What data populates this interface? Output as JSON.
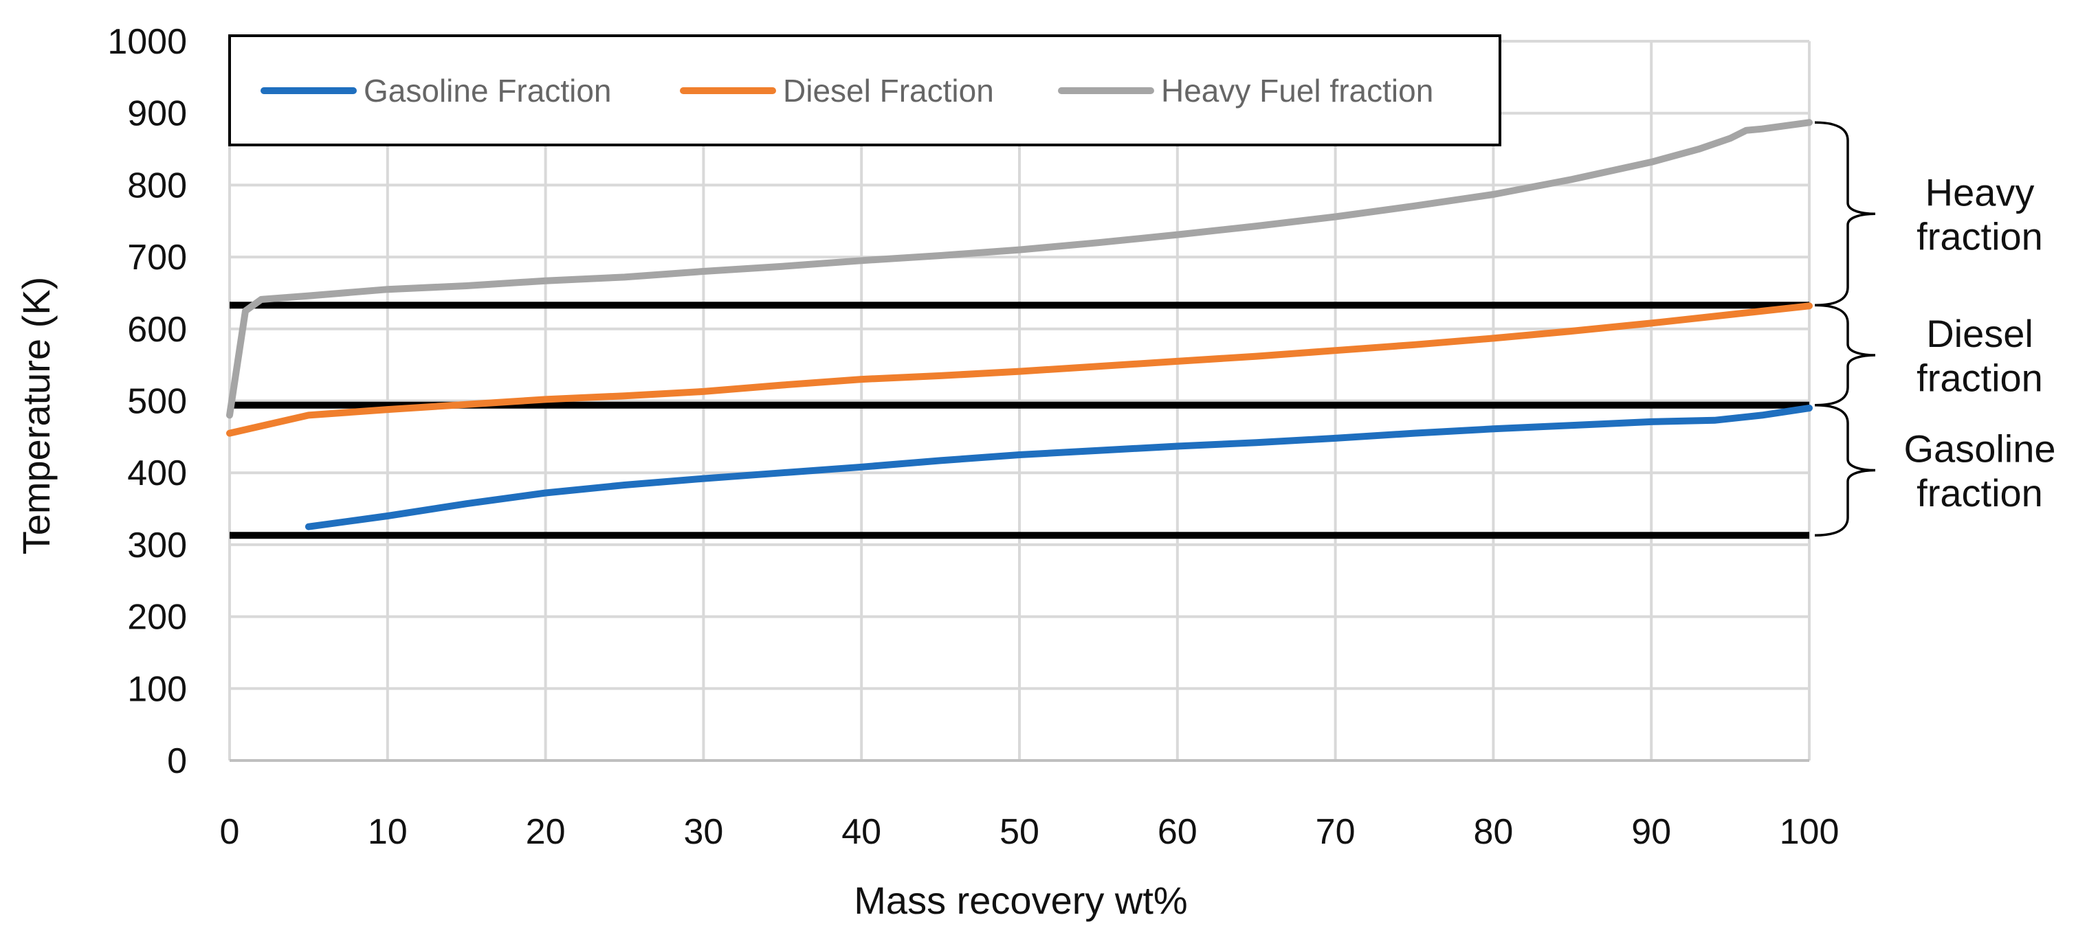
{
  "chart_data": {
    "type": "line",
    "title": "",
    "xlabel": "Mass recovery wt%",
    "ylabel": "Temperature (K)",
    "xlim": [
      0,
      100
    ],
    "ylim": [
      0,
      1000
    ],
    "xticks": [
      0,
      10,
      20,
      30,
      40,
      50,
      60,
      70,
      80,
      90,
      100
    ],
    "yticks": [
      0,
      100,
      200,
      300,
      400,
      500,
      600,
      700,
      800,
      900,
      1000
    ],
    "grid": true,
    "legend_position": "top",
    "series": [
      {
        "name": "Gasoline Fraction",
        "color": "#1f6fbf",
        "x": [
          5,
          10,
          15,
          20,
          25,
          30,
          35,
          40,
          45,
          50,
          55,
          60,
          65,
          70,
          75,
          80,
          85,
          90,
          94,
          97,
          100
        ],
        "y": [
          325,
          340,
          357,
          372,
          383,
          392,
          400,
          408,
          417,
          425,
          431,
          437,
          442,
          448,
          455,
          461,
          466,
          471,
          473,
          480,
          490
        ]
      },
      {
        "name": "Diesel Fraction",
        "color": "#f07f2d",
        "x": [
          0,
          2,
          5,
          10,
          15,
          20,
          25,
          30,
          35,
          40,
          45,
          50,
          55,
          60,
          65,
          70,
          75,
          80,
          85,
          90,
          95,
          100
        ],
        "y": [
          455,
          465,
          480,
          488,
          495,
          502,
          507,
          513,
          522,
          530,
          535,
          541,
          548,
          555,
          562,
          570,
          578,
          587,
          597,
          608,
          620,
          632
        ]
      },
      {
        "name": "Heavy Fuel fraction",
        "color": "#a5a5a5",
        "x": [
          0,
          1,
          2,
          5,
          10,
          15,
          20,
          25,
          30,
          35,
          40,
          45,
          50,
          55,
          60,
          65,
          70,
          75,
          80,
          85,
          90,
          93,
          95,
          96,
          97,
          100
        ],
        "y": [
          480,
          625,
          641,
          646,
          655,
          660,
          667,
          672,
          680,
          687,
          695,
          702,
          710,
          720,
          731,
          743,
          756,
          771,
          787,
          808,
          832,
          850,
          865,
          876,
          878,
          887
        ]
      }
    ],
    "reference_lines": [
      {
        "name": "upper-boundary-line",
        "y": 633
      },
      {
        "name": "middle-boundary-line",
        "y": 494
      },
      {
        "name": "lower-boundary-line",
        "y": 313
      }
    ],
    "annotations": [
      {
        "name": "heavy-fraction",
        "lines": [
          "Heavy",
          "fraction"
        ],
        "y_from": 633,
        "y_to": 887
      },
      {
        "name": "diesel-fraction",
        "lines": [
          "Diesel",
          "fraction"
        ],
        "y_from": 494,
        "y_to": 633
      },
      {
        "name": "gasoline-fraction",
        "lines": [
          "Gasoline",
          "fraction"
        ],
        "y_from": 313,
        "y_to": 494
      }
    ]
  }
}
